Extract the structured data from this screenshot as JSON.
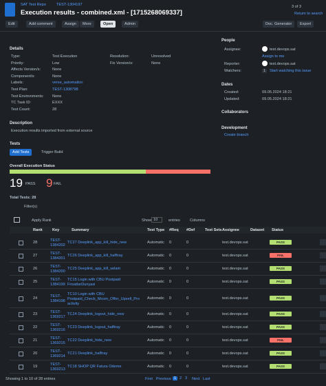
{
  "header": {
    "breadcrumb_project": "SAT Test Repo",
    "breadcrumb_issue": "TEST-1304197",
    "title": "Execution results - combined.xml - [1715268069337]",
    "pager": "3 of 3",
    "return": "Return to search"
  },
  "toolbar": {
    "edit": "Edit",
    "comment": "Add comment",
    "assign": "Assign",
    "more": "More",
    "open": "Open",
    "admin": "Admin",
    "docgen": "Doc. Generator",
    "export": "Export"
  },
  "details": {
    "heading": "Details",
    "left": [
      {
        "label": "Type:",
        "value": "Test Execution"
      },
      {
        "label": "Priority:",
        "value": "Low"
      },
      {
        "label": "Affects Version/s:",
        "value": "None"
      },
      {
        "label": "Component/s:",
        "value": "None"
      },
      {
        "label": "Labels:",
        "value": "verse_automation"
      },
      {
        "label": "Test Plan:",
        "value": "TEST-1308798"
      },
      {
        "label": "Test Environments:",
        "value": "None"
      },
      {
        "label": "TC Task ID:",
        "value": "EXXX"
      },
      {
        "label": "Test Count:",
        "value": "28"
      }
    ],
    "right": [
      {
        "label": "Resolution:",
        "value": "Unresolved"
      },
      {
        "label": "Fix Version/s:",
        "value": "None"
      }
    ]
  },
  "people": {
    "heading": "People",
    "assignee_label": "Assignee:",
    "assignee": "test.devops.sat",
    "assign_to_me": "Assign to me",
    "reporter_label": "Reporter:",
    "reporter": "test.devops.sat",
    "watchers_label": "Watchers:",
    "watchers_count": "1",
    "watch_link": "Start watching this issue"
  },
  "dates": {
    "heading": "Dates",
    "created_label": "Created:",
    "created": "09.05.2024 18:21",
    "updated_label": "Updated:",
    "updated": "09.05.2024 18:21"
  },
  "collaborators": {
    "heading": "Collaborators"
  },
  "development": {
    "heading": "Development",
    "create_branch": "Create branch"
  },
  "description": {
    "heading": "Description",
    "text": "Execution results imported from external source"
  },
  "tests": {
    "heading": "Tests",
    "add_tests": "Add Tests",
    "trigger_build": "Trigger Build",
    "status_heading": "Overall Execution Status",
    "pass": 19,
    "pass_label": "PASS",
    "fail": 9,
    "fail_label": "FAIL",
    "total": "Total Tests: 28",
    "filters": "Filter(s)",
    "apply_rank": "Apply Rank",
    "show": "Show",
    "show_count": "10",
    "entries": "entries",
    "columns": "Columns"
  },
  "table": {
    "headers": [
      "Rank",
      "Key",
      "Summary",
      "Test Type",
      "#Req",
      "#Def",
      "Test Sets",
      "Assignee",
      "Dataset",
      "Status"
    ],
    "rows": [
      [
        "28",
        "TEST-1384202",
        "TC27 Deeplink_app_kill_hide_new",
        "Automatic",
        "0",
        "0",
        "test.devops.sat",
        "PASS"
      ],
      [
        "27",
        "TEST-1384201",
        "TC26 Deeplink_app_kill_halftray",
        "Automatic",
        "0",
        "0",
        "test.devops.sat",
        "FAIL"
      ],
      [
        "26",
        "TEST-1384200",
        "TC25 Deeplink_app_kill_selam",
        "Automatic",
        "0",
        "0",
        "test.devops.sat",
        "PASS"
      ],
      [
        "25",
        "TEST-1384199",
        "TC15 Login with CBU Postpaid FirsatlarDunyasi",
        "Automatic",
        "0",
        "0",
        "test.devops.sat",
        "PASS"
      ],
      [
        "24",
        "TEST-1384198",
        "TC10 Login with CBU Postpaid_Check_Mcom_Offer_Upsell_Proactivity",
        "Automatic",
        "0",
        "0",
        "test.devops.sat",
        "PASS"
      ],
      [
        "23",
        "TEST-1369217",
        "TC24 Deeplink_logout_hide_new",
        "Automatic",
        "0",
        "0",
        "test.devops.sat",
        "PASS"
      ],
      [
        "22",
        "TEST-1369216",
        "TC23 Deeplink_logout_halftray",
        "Automatic",
        "0",
        "0",
        "test.devops.sat",
        "PASS"
      ],
      [
        "21",
        "TEST-1369215",
        "TC22 Deeplink_hide_new",
        "Automatic",
        "0",
        "0",
        "test.devops.sat",
        "FAIL"
      ],
      [
        "20",
        "TEST-1369214",
        "TC21 Deeplink_halftray",
        "Automatic",
        "0",
        "0",
        "test.devops.sat",
        "PASS"
      ],
      [
        "19",
        "TEST-1369213",
        "TC18 SHOP QR Fatura Odeme",
        "Automatic",
        "0",
        "0",
        "test.devops.sat",
        "PASS"
      ]
    ]
  },
  "footer": {
    "showing": "Showing 1 to 10 of 28 entries",
    "first": "First",
    "previous": "Previous",
    "pages": [
      "1",
      "2",
      "3"
    ],
    "next": "Next",
    "last": "Last"
  }
}
